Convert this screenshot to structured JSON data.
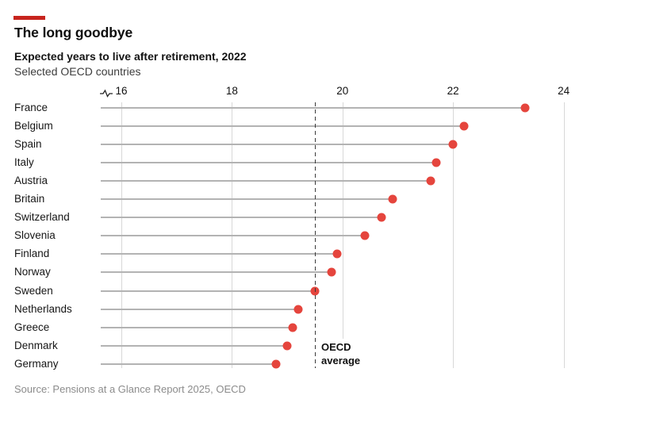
{
  "header": {
    "title": "The long goodbye",
    "subtitle": "Expected years to live after retirement, 2022",
    "subtitle2": "Selected OECD countries"
  },
  "source": "Source: Pensions at a Glance Report 2025, OECD",
  "colors": {
    "accent_bar": "#c7241e",
    "dot": "#e5453d",
    "gridline": "#d8d8d8",
    "stem": "#b3b3b3",
    "dashed_line": "#3a3a3a"
  },
  "chart_data": {
    "type": "scatter",
    "subtype": "horizontal-lollipop-dot-plot",
    "title": "The long goodbye",
    "subtitle": "Expected years to live after retirement, 2022",
    "note": "Selected OECD countries",
    "xlabel": "",
    "ylabel": "",
    "x_ticks": [
      16,
      18,
      20,
      22,
      24
    ],
    "xlim": [
      16,
      24
    ],
    "axis_truncated": true,
    "grid": "vertical",
    "legend": "none",
    "categories": [
      "France",
      "Belgium",
      "Spain",
      "Italy",
      "Austria",
      "Britain",
      "Switzerland",
      "Slovenia",
      "Finland",
      "Norway",
      "Sweden",
      "Netherlands",
      "Greece",
      "Denmark",
      "Germany"
    ],
    "values": [
      23.3,
      22.2,
      22.0,
      21.7,
      21.6,
      20.9,
      20.7,
      20.4,
      19.9,
      19.8,
      19.5,
      19.2,
      19.1,
      19.0,
      18.8
    ],
    "annotation": {
      "label": "OECD average",
      "value": 19.5
    }
  }
}
